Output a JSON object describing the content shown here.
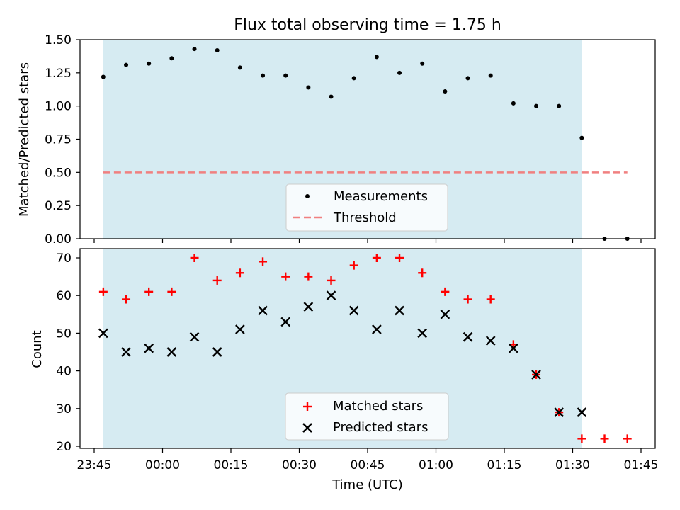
{
  "chart_data": [
    {
      "type": "scatter",
      "title": "Flux total observing time = 1.75 h",
      "ylabel": "Matched/Predicted stars",
      "ylim": [
        0,
        1.5
      ],
      "yticks": [
        "0.00",
        "0.25",
        "0.50",
        "0.75",
        "1.00",
        "1.25",
        "1.50"
      ],
      "shaded_span": [
        "23:47",
        "01:32"
      ],
      "threshold": {
        "name": "Threshold",
        "y": 0.5,
        "x_range": [
          "23:47",
          "01:42"
        ],
        "color": "#f08080"
      },
      "series": [
        {
          "name": "Measurements",
          "color": "#000000",
          "x": [
            "23:47",
            "23:52",
            "23:57",
            "00:02",
            "00:07",
            "00:12",
            "00:17",
            "00:22",
            "00:27",
            "00:32",
            "00:37",
            "00:42",
            "00:47",
            "00:52",
            "00:57",
            "01:02",
            "01:07",
            "01:12",
            "01:17",
            "01:22",
            "01:27",
            "01:32",
            "01:37",
            "01:42"
          ],
          "y": [
            1.22,
            1.31,
            1.32,
            1.36,
            1.43,
            1.42,
            1.29,
            1.23,
            1.23,
            1.14,
            1.07,
            1.21,
            1.37,
            1.25,
            1.32,
            1.11,
            1.21,
            1.23,
            1.02,
            1.0,
            1.0,
            0.76,
            0.0,
            0.0
          ]
        }
      ],
      "legend": {
        "position": "bottom-center",
        "entries": [
          "Measurements",
          "Threshold"
        ]
      }
    },
    {
      "type": "scatter",
      "xlabel": "Time (UTC)",
      "ylabel": "Count",
      "ylim": [
        19.5,
        72.5
      ],
      "yticks": [
        "20",
        "30",
        "40",
        "50",
        "60",
        "70"
      ],
      "xticks": [
        "23:45",
        "00:00",
        "00:15",
        "00:30",
        "00:45",
        "01:00",
        "01:15",
        "01:30",
        "01:45"
      ],
      "shaded_span": [
        "23:47",
        "01:32"
      ],
      "series": [
        {
          "name": "Matched stars",
          "marker": "+",
          "color": "#ff0000",
          "x": [
            "23:47",
            "23:52",
            "23:57",
            "00:02",
            "00:07",
            "00:12",
            "00:17",
            "00:22",
            "00:27",
            "00:32",
            "00:37",
            "00:42",
            "00:47",
            "00:52",
            "00:57",
            "01:02",
            "01:07",
            "01:12",
            "01:17",
            "01:22",
            "01:27",
            "01:32",
            "01:37",
            "01:42"
          ],
          "y": [
            61,
            59,
            61,
            61,
            70,
            64,
            66,
            69,
            65,
            65,
            64,
            68,
            70,
            70,
            66,
            61,
            59,
            59,
            47,
            39,
            29,
            22,
            22,
            22
          ]
        },
        {
          "name": "Predicted stars",
          "marker": "x",
          "color": "#000000",
          "x": [
            "23:47",
            "23:52",
            "23:57",
            "00:02",
            "00:07",
            "00:12",
            "00:17",
            "00:22",
            "00:27",
            "00:32",
            "00:37",
            "00:42",
            "00:47",
            "00:52",
            "00:57",
            "01:02",
            "01:07",
            "01:12",
            "01:17",
            "01:22",
            "01:27",
            "01:32"
          ],
          "y": [
            50,
            45,
            46,
            45,
            49,
            45,
            51,
            56,
            53,
            57,
            60,
            56,
            51,
            56,
            50,
            55,
            49,
            48,
            46,
            39,
            29,
            29
          ]
        }
      ],
      "legend": {
        "position": "bottom-center",
        "entries": [
          "Matched stars",
          "Predicted stars"
        ]
      }
    }
  ],
  "colors": {
    "span": "#add8e6",
    "span_opacity": 0.5
  }
}
